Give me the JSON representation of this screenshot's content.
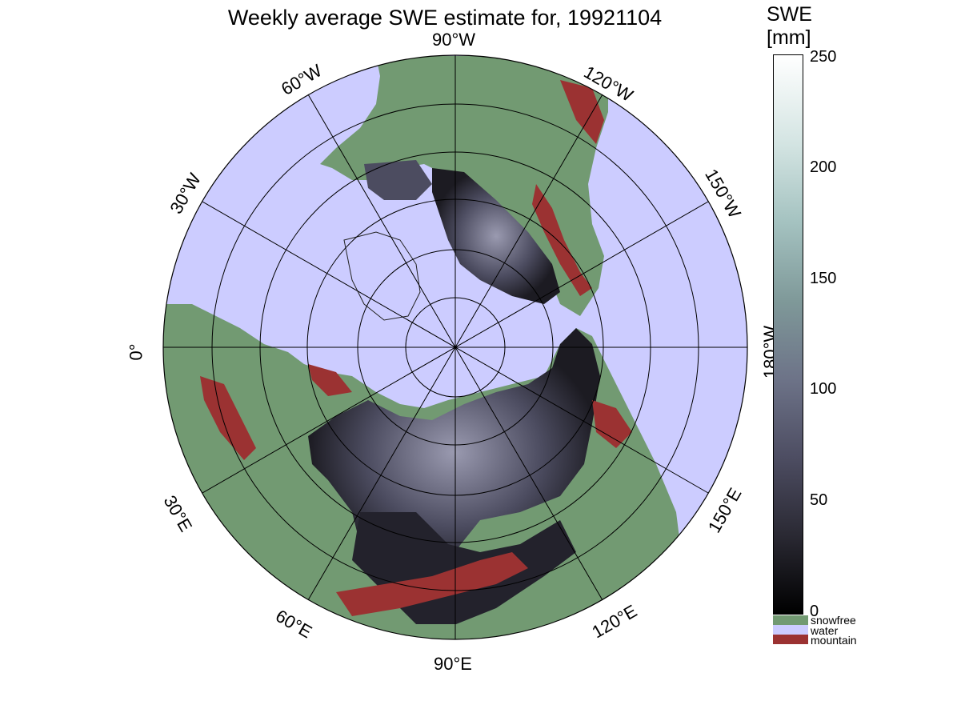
{
  "title": "Weekly average SWE estimate for, 19921104",
  "longitude_labels": {
    "top": "90°W",
    "upper_left": "60°W",
    "left_upper": "30°W",
    "left": "0°",
    "lower_left": "30°E",
    "bottom_left": "60°E",
    "bottom": "90°E",
    "bottom_right": "120°E",
    "right_lower": "150°E",
    "right": "180°W",
    "right_upper": "150°W",
    "upper_right": "120°W"
  },
  "colorbar": {
    "title_line1": "SWE",
    "title_line2": "[mm]",
    "ticks": [
      "0",
      "50",
      "100",
      "150",
      "200",
      "250"
    ],
    "range": [
      0,
      250
    ]
  },
  "legend": [
    {
      "label": "snowfree",
      "color": "#729a72"
    },
    {
      "label": "water",
      "color": "#ccccff"
    },
    {
      "label": "mountain",
      "color": "#9b3232"
    }
  ],
  "colors": {
    "ocean": "#ccccff",
    "land": "#729a72",
    "snow_dark": "#23222c",
    "snow_mid": "#4c4c60",
    "mountain": "#9b3232"
  }
}
